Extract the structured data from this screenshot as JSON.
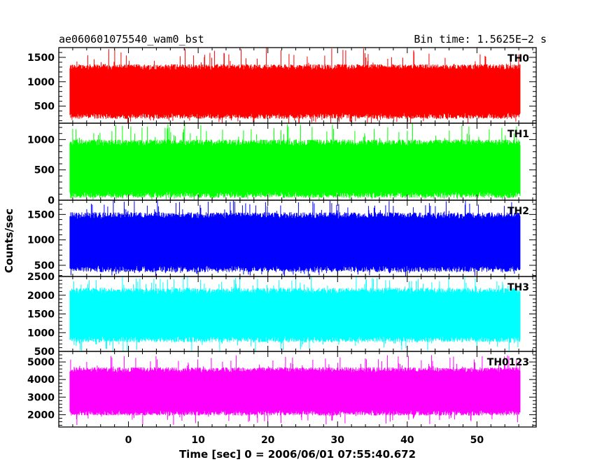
{
  "header": {
    "title": "ae060601075540_wam0_bst",
    "bin_time": "Bin time: 1.5625E−2 s"
  },
  "axes": {
    "ylabel": "Counts/sec",
    "xlabel": "Time [sec] 0 = 2006/06/01 07:55:40.672"
  },
  "chart_data": {
    "type": "line",
    "x_range": [
      -8.4,
      56.2
    ],
    "xlim": [
      -10,
      58.5
    ],
    "x_ticks": [
      0,
      10,
      20,
      30,
      40,
      50
    ],
    "x_minor_step": 2,
    "series": [
      {
        "name": "TH0",
        "color": "#ff0000",
        "ylim": [
          150,
          1700
        ],
        "y_ticks": [
          500,
          1000,
          1500
        ],
        "y_minor_step": 100,
        "base_low": 300,
        "base_high": 1300,
        "spike_min": 120,
        "spike_max": 1700
      },
      {
        "name": "TH1",
        "color": "#00ff00",
        "ylim": [
          0,
          1270
        ],
        "y_ticks": [
          0,
          500,
          1000
        ],
        "y_minor_step": 100,
        "base_low": 90,
        "base_high": 950,
        "spike_min": 5,
        "spike_max": 1270
      },
      {
        "name": "TH2",
        "color": "#0000ff",
        "ylim": [
          280,
          1780
        ],
        "y_ticks": [
          500,
          1000,
          1500
        ],
        "y_minor_step": 100,
        "base_low": 430,
        "base_high": 1480,
        "spike_min": 280,
        "spike_max": 1780
      },
      {
        "name": "TH3",
        "color": "#00ffff",
        "ylim": [
          500,
          2500
        ],
        "y_ticks": [
          500,
          1000,
          1500,
          2000,
          2500
        ],
        "y_minor_step": 100,
        "base_low": 820,
        "base_high": 2120,
        "spike_min": 500,
        "spike_max": 2500
      },
      {
        "name": "TH0123",
        "color": "#ff00ff",
        "ylim": [
          1300,
          5600
        ],
        "y_ticks": [
          2000,
          3000,
          4000,
          5000
        ],
        "y_minor_step": 200,
        "base_low": 2100,
        "base_high": 4550,
        "spike_min": 1400,
        "spike_max": 5400
      }
    ]
  }
}
